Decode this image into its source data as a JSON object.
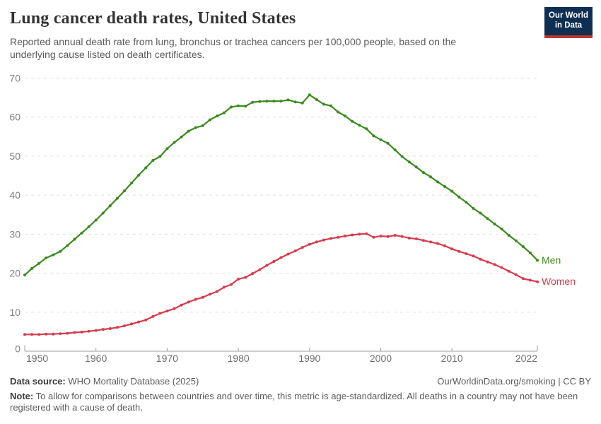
{
  "header": {
    "title": "Lung cancer death rates, United States",
    "subtitle": "Reported annual death rate from lung, bronchus or trachea cancers per 100,000 people, based on the underlying cause listed on death certificates."
  },
  "logo": {
    "line1": "Our World",
    "line2": "in Data",
    "bg_color": "#0e2e52",
    "accent_color": "#c0362c"
  },
  "chart_data": {
    "type": "line",
    "title": "Lung cancer death rates, United States",
    "subtitle": "Reported annual death rate from lung, bronchus or trachea cancers per 100,000 people, based on the underlying cause listed on death certificates.",
    "xlabel": "",
    "ylabel": "",
    "xlim": [
      1950,
      2022
    ],
    "ylim": [
      0,
      70
    ],
    "yticks": [
      0,
      10,
      20,
      30,
      40,
      50,
      60,
      70
    ],
    "xticks": [
      {
        "year": 1950,
        "label": "1950",
        "anchor": "start"
      },
      {
        "year": 1960,
        "label": "1960",
        "anchor": "middle"
      },
      {
        "year": 1970,
        "label": "1970",
        "anchor": "middle"
      },
      {
        "year": 1980,
        "label": "1980",
        "anchor": "middle"
      },
      {
        "year": 1990,
        "label": "1990",
        "anchor": "middle"
      },
      {
        "year": 2000,
        "label": "2000",
        "anchor": "middle"
      },
      {
        "year": 2010,
        "label": "2010",
        "anchor": "middle"
      },
      {
        "year": 2022,
        "label": "2022",
        "anchor": "end"
      }
    ],
    "grid": "horizontal-dashed",
    "legend": "end-of-line-labels",
    "years": [
      1950,
      1951,
      1952,
      1953,
      1954,
      1955,
      1956,
      1957,
      1958,
      1959,
      1960,
      1961,
      1962,
      1963,
      1964,
      1965,
      1966,
      1967,
      1968,
      1969,
      1970,
      1971,
      1972,
      1973,
      1974,
      1975,
      1976,
      1977,
      1978,
      1979,
      1980,
      1981,
      1982,
      1983,
      1984,
      1985,
      1986,
      1987,
      1988,
      1989,
      1990,
      1991,
      1992,
      1993,
      1994,
      1995,
      1996,
      1997,
      1998,
      1999,
      2000,
      2001,
      2002,
      2003,
      2004,
      2005,
      2006,
      2007,
      2008,
      2009,
      2010,
      2011,
      2012,
      2013,
      2014,
      2015,
      2016,
      2017,
      2018,
      2019,
      2020,
      2021,
      2022
    ],
    "series": [
      {
        "name": "Men",
        "color": "#3C8A1E",
        "values": [
          19.5,
          21.2,
          22.5,
          23.9,
          24.7,
          25.6,
          27.1,
          28.7,
          30.3,
          31.9,
          33.6,
          35.4,
          37.3,
          39.2,
          41.1,
          43.1,
          45.1,
          47.0,
          48.9,
          49.9,
          51.9,
          53.5,
          54.9,
          56.4,
          57.3,
          57.8,
          59.3,
          60.3,
          61.1,
          62.6,
          62.9,
          62.8,
          63.8,
          64.0,
          64.1,
          64.1,
          64.1,
          64.4,
          63.9,
          63.6,
          65.7,
          64.5,
          63.3,
          62.9,
          61.3,
          60.3,
          58.9,
          57.9,
          57.0,
          55.2,
          54.2,
          53.3,
          51.6,
          49.9,
          48.5,
          47.2,
          45.8,
          44.7,
          43.4,
          42.2,
          41.0,
          39.5,
          38.2,
          36.6,
          35.4,
          34.0,
          32.6,
          31.3,
          29.7,
          28.3,
          26.8,
          25.2,
          23.3
        ]
      },
      {
        "name": "Women",
        "color": "#D73C4E",
        "values": [
          4.3,
          4.3,
          4.3,
          4.4,
          4.4,
          4.5,
          4.6,
          4.8,
          4.9,
          5.1,
          5.3,
          5.6,
          5.8,
          6.1,
          6.5,
          7.0,
          7.5,
          8.0,
          8.9,
          9.7,
          10.3,
          10.9,
          11.8,
          12.6,
          13.3,
          13.8,
          14.6,
          15.3,
          16.4,
          17.1,
          18.5,
          18.9,
          19.9,
          20.9,
          22.0,
          23.0,
          24.0,
          24.9,
          25.7,
          26.6,
          27.4,
          28.0,
          28.5,
          28.9,
          29.2,
          29.5,
          29.8,
          30.0,
          30.1,
          29.2,
          29.5,
          29.4,
          29.7,
          29.4,
          29.0,
          28.8,
          28.4,
          28.0,
          27.6,
          27.0,
          26.2,
          25.6,
          25.0,
          24.4,
          23.6,
          22.9,
          22.2,
          21.4,
          20.5,
          19.6,
          18.6,
          18.2,
          17.8
        ]
      }
    ],
    "style": {
      "gridline_color": "#dedede",
      "axis_color": "#9e9e9e",
      "y_tick_label_color": "#808080",
      "x_tick_label_color": "#6e6e6e"
    }
  },
  "footer": {
    "data_source_label": "Data source:",
    "data_source_value": "WHO Mortality Database (2025)",
    "attribution": "OurWorldinData.org/smoking | CC BY",
    "note_label": "Note:",
    "note_text": "To allow for comparisons between countries and over time, this metric is age-standardized. All deaths in a country may not have been registered with a cause of death."
  }
}
